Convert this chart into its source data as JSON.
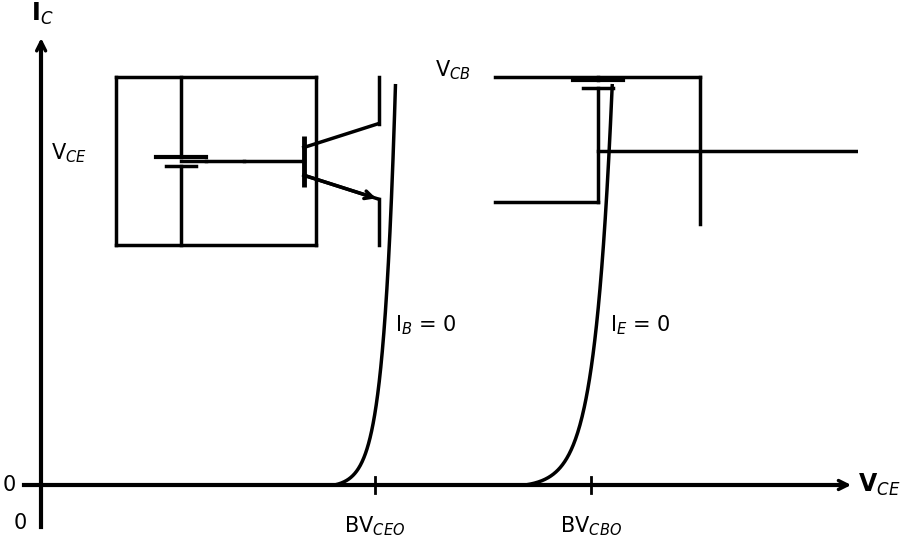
{
  "bg_color": "#ffffff",
  "line_color": "#000000",
  "bv_ceo": 0.4,
  "bv_cbo": 0.66,
  "x_max": 0.92,
  "y_max": 1.0,
  "label_IB": "I$_B$ = 0",
  "label_IE": "I$_E$ = 0",
  "xlabel": "V$_{CE}$",
  "ylabel": "I$_C$",
  "x0_label": "0",
  "y0_label": "0",
  "bvceo_label": "BV$_{CEO}$",
  "bvcbo_label": "BV$_{CBO}$",
  "axis_lw": 2.5,
  "curve_lw": 2.5,
  "circuit_lw": 2.5
}
